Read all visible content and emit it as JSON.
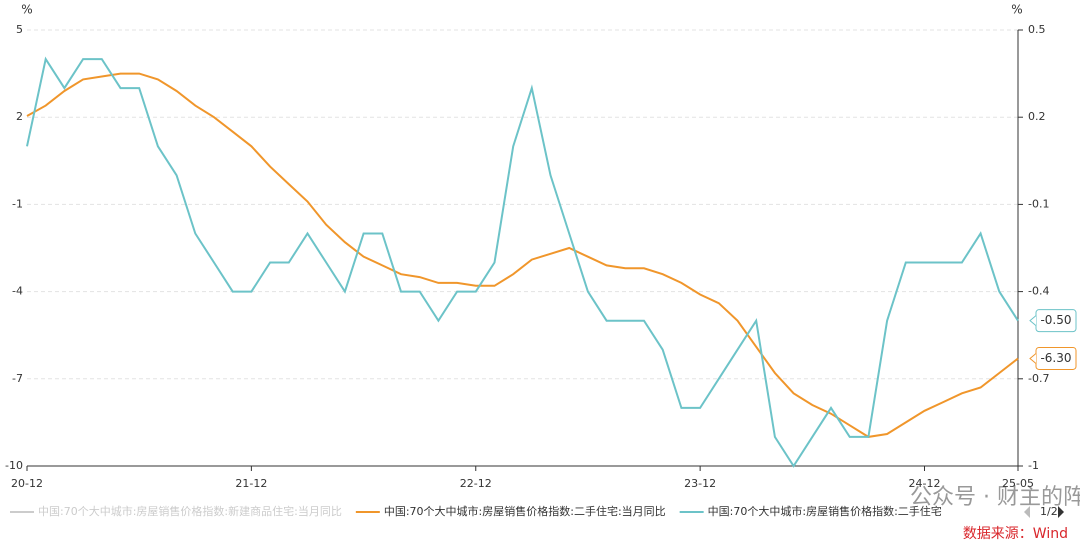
{
  "chart_data": {
    "type": "line",
    "yunit": "%",
    "y2unit": "%",
    "categories": [
      "20-12",
      null,
      null,
      null,
      null,
      null,
      null,
      null,
      null,
      null,
      null,
      null,
      "21-12",
      null,
      null,
      null,
      null,
      null,
      null,
      null,
      null,
      null,
      null,
      null,
      "22-12",
      null,
      null,
      null,
      null,
      null,
      null,
      null,
      null,
      null,
      null,
      null,
      "23-12",
      null,
      null,
      null,
      null,
      null,
      null,
      null,
      null,
      null,
      null,
      null,
      "24-12",
      null,
      null,
      null,
      null,
      "25-05"
    ],
    "ylim": [
      -10,
      5
    ],
    "yticks": [
      5,
      2,
      -1,
      -4,
      -7,
      -10
    ],
    "y2lim": [
      -1,
      0.5
    ],
    "y2ticks": [
      0.5,
      0.2,
      -0.1,
      -0.4,
      -0.7,
      -1
    ],
    "grid": true,
    "disabled_series": [
      {
        "name": "中国:70个大中城市:房屋销售价格指数:新建商品住宅:当月同比",
        "color": "#cccccc"
      }
    ],
    "series": [
      {
        "name": "中国:70个大中城市:房屋销售价格指数:二手住宅:当月同比",
        "color": "#f0962b",
        "axis": "y",
        "values": [
          2.04,
          2.4,
          2.9,
          3.3,
          3.4,
          3.5,
          3.5,
          3.3,
          2.9,
          2.4,
          2.0,
          1.5,
          1.0,
          0.3,
          -0.3,
          -0.9,
          -1.7,
          -2.3,
          -2.8,
          -3.1,
          -3.4,
          -3.5,
          -3.7,
          -3.7,
          -3.8,
          -3.8,
          -3.4,
          -2.9,
          -2.7,
          -2.5,
          -2.8,
          -3.1,
          -3.2,
          -3.2,
          -3.4,
          -3.7,
          -4.1,
          -4.4,
          -5.0,
          -5.9,
          -6.8,
          -7.5,
          -7.9,
          -8.2,
          -8.6,
          -9.0,
          -8.9,
          -8.5,
          -8.1,
          -7.8,
          -7.5,
          -7.3,
          -6.8,
          -6.3
        ],
        "value_labels": [
          null,
          null,
          null,
          null,
          null,
          null,
          null,
          null,
          null,
          null,
          null,
          null,
          null,
          null,
          null,
          null,
          null,
          null,
          null,
          null,
          null,
          null,
          null,
          null,
          null,
          null,
          null,
          null,
          null,
          null,
          null,
          null,
          null,
          null,
          null,
          null,
          null,
          null,
          null,
          null,
          null,
          null,
          null,
          null,
          null,
          null,
          null,
          null,
          null,
          null,
          null,
          null,
          null,
          "-6.30"
        ]
      },
      {
        "name": "中国:70个大中城市:房屋销售价格指数:二手住宅",
        "color": "#6cc3c8",
        "axis": "y2",
        "values": [
          0.1,
          0.4,
          0.3,
          0.4,
          0.4,
          0.3,
          0.3,
          0.1,
          0.0,
          -0.2,
          -0.3,
          -0.4,
          -0.4,
          -0.3,
          -0.3,
          -0.2,
          -0.3,
          -0.4,
          -0.2,
          -0.2,
          -0.4,
          -0.4,
          -0.5,
          -0.4,
          -0.4,
          -0.3,
          0.1,
          0.3,
          0.0,
          -0.2,
          -0.4,
          -0.5,
          -0.5,
          -0.5,
          -0.6,
          -0.8,
          -0.8,
          -0.7,
          -0.6,
          -0.5,
          -0.9,
          -1.0,
          -0.9,
          -0.8,
          -0.9,
          -0.9,
          -0.5,
          -0.3,
          -0.3,
          -0.3,
          -0.3,
          -0.2,
          -0.4,
          -0.5
        ],
        "value_labels": [
          null,
          null,
          null,
          null,
          null,
          null,
          null,
          null,
          null,
          null,
          null,
          null,
          null,
          null,
          null,
          null,
          null,
          null,
          null,
          null,
          null,
          null,
          null,
          null,
          null,
          null,
          null,
          null,
          null,
          null,
          null,
          null,
          null,
          null,
          null,
          null,
          null,
          null,
          null,
          null,
          null,
          null,
          null,
          null,
          null,
          null,
          null,
          null,
          null,
          null,
          null,
          null,
          null,
          "-0.50"
        ]
      }
    ],
    "legend_page": "1/2",
    "watermark": "公众号 · 财主的阵地",
    "source": "数据来源：Wind"
  }
}
